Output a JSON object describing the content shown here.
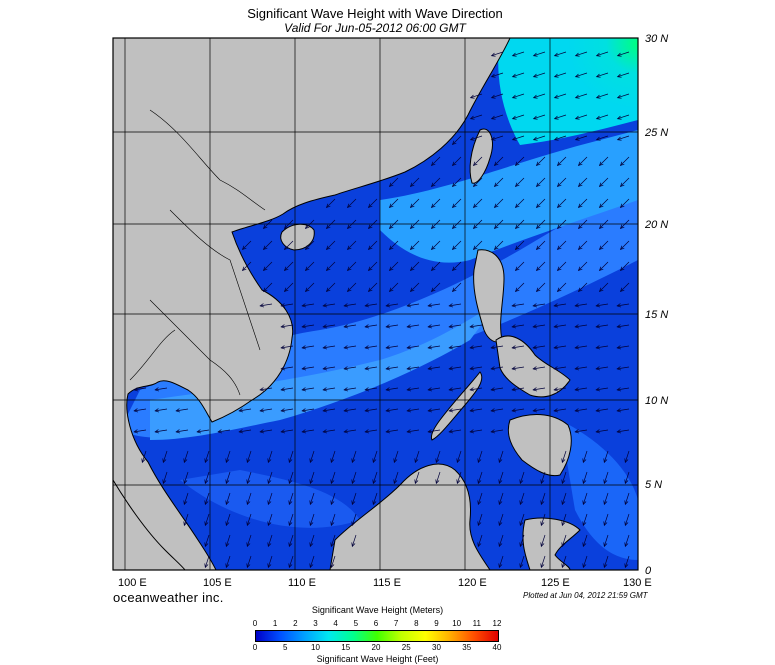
{
  "title": "Significant Wave Height with Wave Direction",
  "subtitle": "Valid For Jun-05-2012 06:00 GMT",
  "brand": "oceanweather inc.",
  "plotted": "Plotted at Jun 04, 2012 21:59 GMT",
  "lat_labels": [
    "30 N",
    "25 N",
    "20 N",
    "15 N",
    "10 N",
    "5 N",
    "0"
  ],
  "lon_labels": [
    "100 E",
    "105 E",
    "110 E",
    "115 E",
    "120 E",
    "125 E",
    "130 E"
  ],
  "colorbar": {
    "meters_title": "Significant Wave Height (Meters)",
    "feet_title": "Significant Wave Height (Feet)",
    "meters_ticks": [
      "0",
      "1",
      "2",
      "3",
      "4",
      "5",
      "6",
      "7",
      "8",
      "9",
      "10",
      "11",
      "12"
    ],
    "feet_ticks": [
      "0",
      "5",
      "10",
      "15",
      "20",
      "25",
      "30",
      "35",
      "40"
    ],
    "colors": [
      "#0000c8",
      "#0050ff",
      "#00a0ff",
      "#00e8f0",
      "#00ff90",
      "#40ff00",
      "#c0ff00",
      "#ffff00",
      "#ffb000",
      "#ff5000",
      "#e00000"
    ]
  },
  "colors": {
    "land": "#c0c0c0",
    "ocean_low": "#0a3ad8",
    "ocean_mid": "#1e78ff",
    "ocean_high": "#00d8ff",
    "ne_high": "#00e890"
  }
}
